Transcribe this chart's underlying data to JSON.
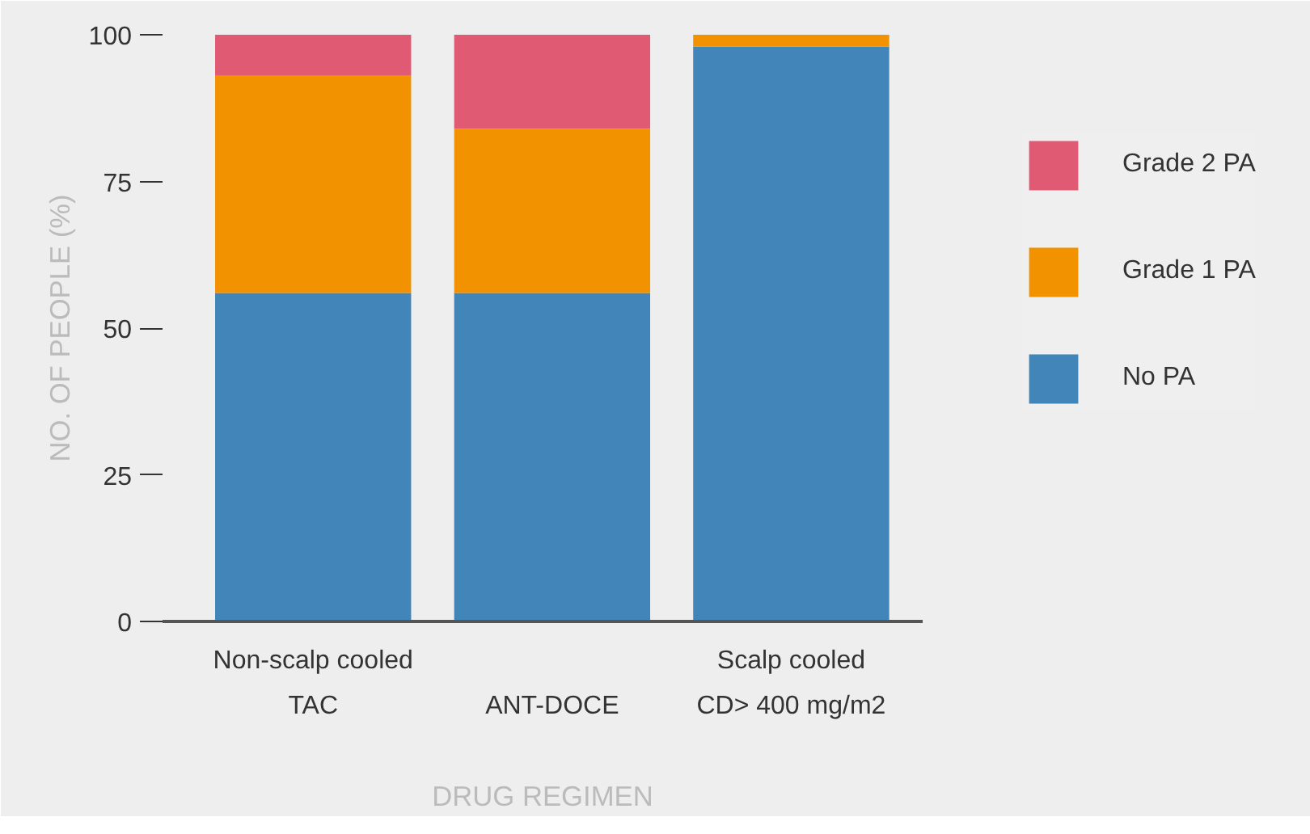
{
  "chart_data": {
    "type": "bar",
    "stacked": true,
    "xlabel": "DRUG REGIMEN",
    "ylabel": "NO. OF PEOPLE (%)",
    "categories": [
      "TAC",
      "ANT-DOCE",
      "CD> 400 mg/m2"
    ],
    "series": [
      {
        "name": "No PA",
        "color": "#4285b8",
        "values": [
          56,
          56,
          98
        ]
      },
      {
        "name": "Grade 1 PA",
        "color": "#f39200",
        "values": [
          37,
          28,
          2
        ]
      },
      {
        "name": "Grade 2 PA",
        "color": "#e05a73",
        "values": [
          7,
          16,
          0
        ]
      }
    ],
    "annotations": [
      "Non-scalp cooled",
      "Scalp cooled"
    ],
    "ylim": [
      0,
      100
    ],
    "yticks": [
      0,
      25,
      50,
      75,
      100
    ],
    "grid": false,
    "legend": "top right"
  }
}
